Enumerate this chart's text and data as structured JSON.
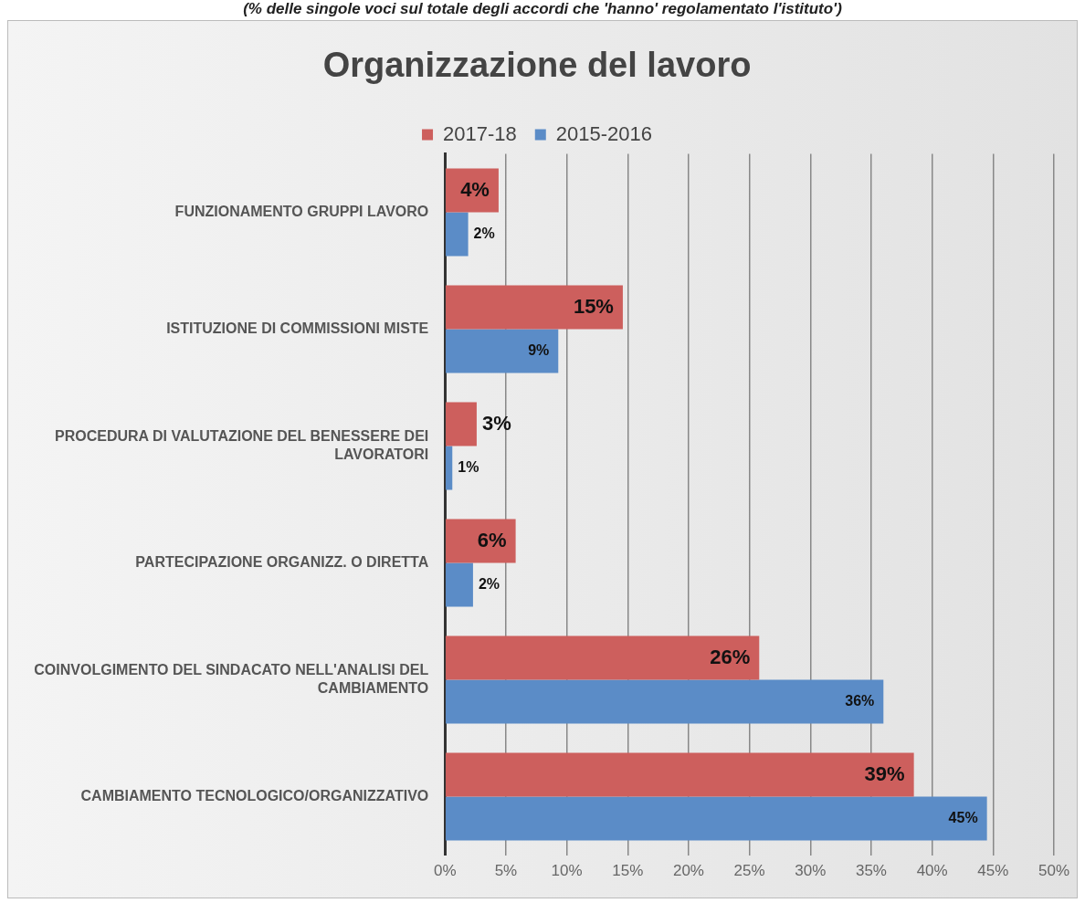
{
  "chart_data": {
    "type": "bar",
    "orientation": "horizontal",
    "title": "Organizzazione del lavoro",
    "subtitle": "(% delle singole voci sul totale degli accordi che 'hanno' regolamentato l'istituto')",
    "categories": [
      "FUNZIONAMENTO GRUPPI LAVORO",
      "ISTITUZIONE DI COMMISSIONI MISTE",
      "PROCEDURA DI VALUTAZIONE DEL BENESSERE DEI LAVORATORI",
      "PARTECIPAZIONE ORGANIZZ. O DIRETTA",
      "COINVOLGIMENTO DEL SINDACATO NELL'ANALISI DEL CAMBIAMENTO",
      "CAMBIAMENTO TECNOLOGICO/ORGANIZZATIVO"
    ],
    "series": [
      {
        "name": "2017-18",
        "color": "#cd5f5d",
        "values": [
          4.4,
          14.6,
          2.6,
          5.8,
          25.8,
          38.5
        ],
        "value_labels": [
          "4%",
          "15%",
          "3%",
          "6%",
          "26%",
          "39%"
        ]
      },
      {
        "name": "2015-2016",
        "color": "#5b8cc7",
        "values": [
          1.9,
          9.3,
          0.6,
          2.3,
          36,
          44.5
        ],
        "value_labels": [
          "2%",
          "9%",
          "1%",
          "2%",
          "36%",
          "45%"
        ]
      }
    ],
    "xlim": [
      0,
      50
    ],
    "xticks": [
      {
        "value": 0,
        "label": "0%"
      },
      {
        "value": 5,
        "label": "5%"
      },
      {
        "value": 10,
        "label": "10%"
      },
      {
        "value": 15,
        "label": "15%"
      },
      {
        "value": 20,
        "label": "20%"
      },
      {
        "value": 25,
        "label": "25%"
      },
      {
        "value": 30,
        "label": "30%"
      },
      {
        "value": 35,
        "label": "35%"
      },
      {
        "value": 40,
        "label": "40%"
      },
      {
        "value": 45,
        "label": "45%"
      },
      {
        "value": 50,
        "label": "50%"
      }
    ],
    "grid": "x",
    "legend": "top"
  }
}
